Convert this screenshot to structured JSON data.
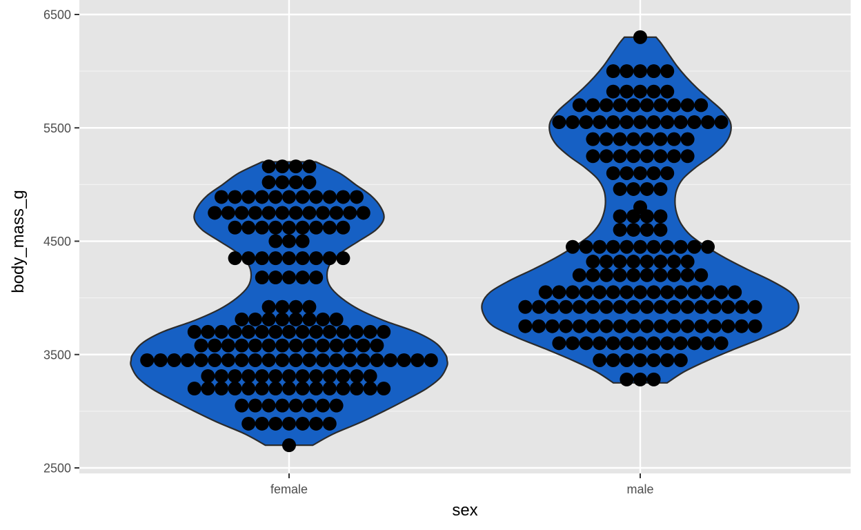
{
  "colors": {
    "panel_background": "#e5e5e5",
    "grid_major": "#ffffff",
    "grid_minor": "#f2f2f2",
    "violin_fill": "#1660c4",
    "violin_outline": "#2b2b2b",
    "dot_fill": "#000000",
    "tick_text": "#4d4d4d"
  },
  "chart_data": {
    "type": "violin",
    "overlay": "dotplot",
    "xlabel": "sex",
    "ylabel": "body_mass_g",
    "categories": [
      "female",
      "male"
    ],
    "yticks": [
      2500,
      3500,
      4500,
      5500,
      6500
    ],
    "yminor": [
      3000,
      4000,
      5000,
      6000
    ],
    "ylim": [
      2500,
      6500
    ],
    "grid": true,
    "legend": "none",
    "groups": [
      {
        "name": "female",
        "min": 2700,
        "max": 5200,
        "density": [
          [
            2700,
            0.15
          ],
          [
            2800,
            0.28
          ],
          [
            2900,
            0.45
          ],
          [
            3000,
            0.6
          ],
          [
            3100,
            0.74
          ],
          [
            3200,
            0.87
          ],
          [
            3300,
            0.96
          ],
          [
            3400,
            1.0
          ],
          [
            3450,
            1.0
          ],
          [
            3500,
            0.99
          ],
          [
            3600,
            0.93
          ],
          [
            3700,
            0.8
          ],
          [
            3800,
            0.6
          ],
          [
            3900,
            0.44
          ],
          [
            4000,
            0.33
          ],
          [
            4100,
            0.26
          ],
          [
            4200,
            0.24
          ],
          [
            4300,
            0.26
          ],
          [
            4400,
            0.33
          ],
          [
            4500,
            0.44
          ],
          [
            4600,
            0.55
          ],
          [
            4700,
            0.6
          ],
          [
            4800,
            0.58
          ],
          [
            4900,
            0.52
          ],
          [
            5000,
            0.42
          ],
          [
            5100,
            0.32
          ],
          [
            5200,
            0.17
          ]
        ],
        "dots": [
          {
            "y": 2700,
            "n": 1
          },
          {
            "y": 2890,
            "n": 7
          },
          {
            "y": 3050,
            "n": 8
          },
          {
            "y": 3200,
            "n": 15
          },
          {
            "y": 3310,
            "n": 13
          },
          {
            "y": 3450,
            "n": 22
          },
          {
            "y": 3580,
            "n": 14
          },
          {
            "y": 3700,
            "n": 15
          },
          {
            "y": 3810,
            "n": 8
          },
          {
            "y": 3920,
            "n": 4
          },
          {
            "y": 4180,
            "n": 5
          },
          {
            "y": 4350,
            "n": 9
          },
          {
            "y": 4500,
            "n": 3
          },
          {
            "y": 4620,
            "n": 9
          },
          {
            "y": 4750,
            "n": 12
          },
          {
            "y": 4890,
            "n": 11
          },
          {
            "y": 5020,
            "n": 4
          },
          {
            "y": 5160,
            "n": 4
          }
        ]
      },
      {
        "name": "male",
        "min": 3250,
        "max": 6300,
        "density": [
          [
            3250,
            0.17
          ],
          [
            3350,
            0.28
          ],
          [
            3450,
            0.43
          ],
          [
            3550,
            0.6
          ],
          [
            3650,
            0.78
          ],
          [
            3750,
            0.93
          ],
          [
            3850,
            0.99
          ],
          [
            3950,
            1.0
          ],
          [
            4050,
            0.95
          ],
          [
            4150,
            0.83
          ],
          [
            4250,
            0.68
          ],
          [
            4350,
            0.54
          ],
          [
            4450,
            0.42
          ],
          [
            4550,
            0.32
          ],
          [
            4650,
            0.26
          ],
          [
            4750,
            0.23
          ],
          [
            4850,
            0.22
          ],
          [
            4950,
            0.23
          ],
          [
            5050,
            0.27
          ],
          [
            5150,
            0.35
          ],
          [
            5250,
            0.45
          ],
          [
            5350,
            0.53
          ],
          [
            5450,
            0.57
          ],
          [
            5550,
            0.57
          ],
          [
            5650,
            0.52
          ],
          [
            5750,
            0.44
          ],
          [
            5850,
            0.36
          ],
          [
            5950,
            0.29
          ],
          [
            6050,
            0.23
          ],
          [
            6150,
            0.18
          ],
          [
            6250,
            0.13
          ],
          [
            6300,
            0.1
          ]
        ],
        "dots": [
          {
            "y": 3280,
            "n": 3
          },
          {
            "y": 3450,
            "n": 7
          },
          {
            "y": 3600,
            "n": 13
          },
          {
            "y": 3750,
            "n": 18
          },
          {
            "y": 3920,
            "n": 18
          },
          {
            "y": 4050,
            "n": 15
          },
          {
            "y": 4200,
            "n": 10
          },
          {
            "y": 4320,
            "n": 8
          },
          {
            "y": 4450,
            "n": 11
          },
          {
            "y": 4600,
            "n": 4
          },
          {
            "y": 4720,
            "n": 4
          },
          {
            "y": 4800,
            "n": 1
          },
          {
            "y": 4960,
            "n": 4
          },
          {
            "y": 5100,
            "n": 5
          },
          {
            "y": 5250,
            "n": 8
          },
          {
            "y": 5400,
            "n": 8
          },
          {
            "y": 5550,
            "n": 13
          },
          {
            "y": 5700,
            "n": 10
          },
          {
            "y": 5820,
            "n": 5
          },
          {
            "y": 6000,
            "n": 5
          },
          {
            "y": 6300,
            "n": 1
          }
        ]
      }
    ]
  }
}
